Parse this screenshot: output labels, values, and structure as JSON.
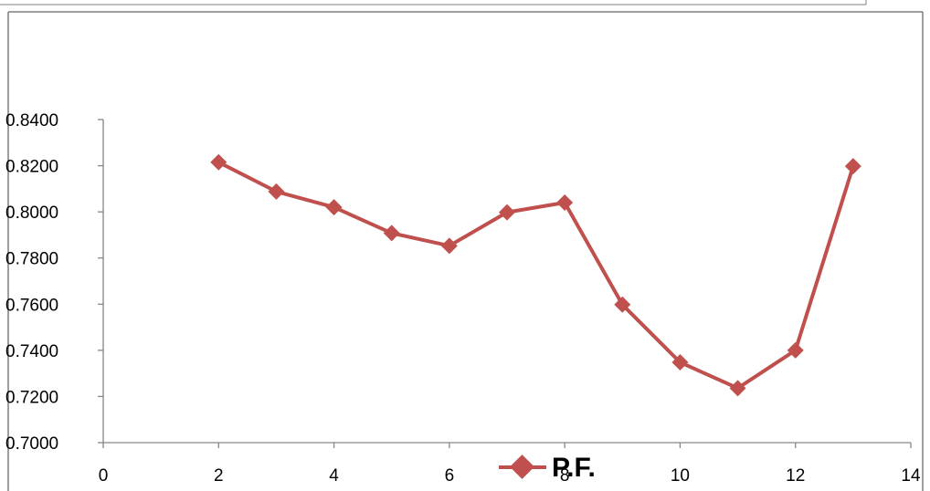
{
  "chart_data": {
    "type": "line",
    "title": "",
    "xlabel": "",
    "ylabel": "",
    "xlim": [
      0,
      14
    ],
    "ylim": [
      0.7,
      0.84
    ],
    "x_ticks": [
      "0",
      "2",
      "4",
      "6",
      "8",
      "10",
      "12",
      "14"
    ],
    "y_ticks": [
      "0.7000",
      "0.7200",
      "0.7400",
      "0.7600",
      "0.7800",
      "0.8000",
      "0.8200",
      "0.8400"
    ],
    "grid": false,
    "legend_position": "bottom",
    "series": [
      {
        "name": "P.F.",
        "color": "#C0504D",
        "marker": "diamond",
        "x": [
          2,
          3,
          4,
          5,
          6,
          7,
          8,
          9,
          10,
          11,
          12,
          13
        ],
        "y": [
          0.8215,
          0.8088,
          0.802,
          0.7908,
          0.7853,
          0.7998,
          0.804,
          0.7598,
          0.7348,
          0.7236,
          0.74,
          0.8198
        ]
      }
    ]
  }
}
